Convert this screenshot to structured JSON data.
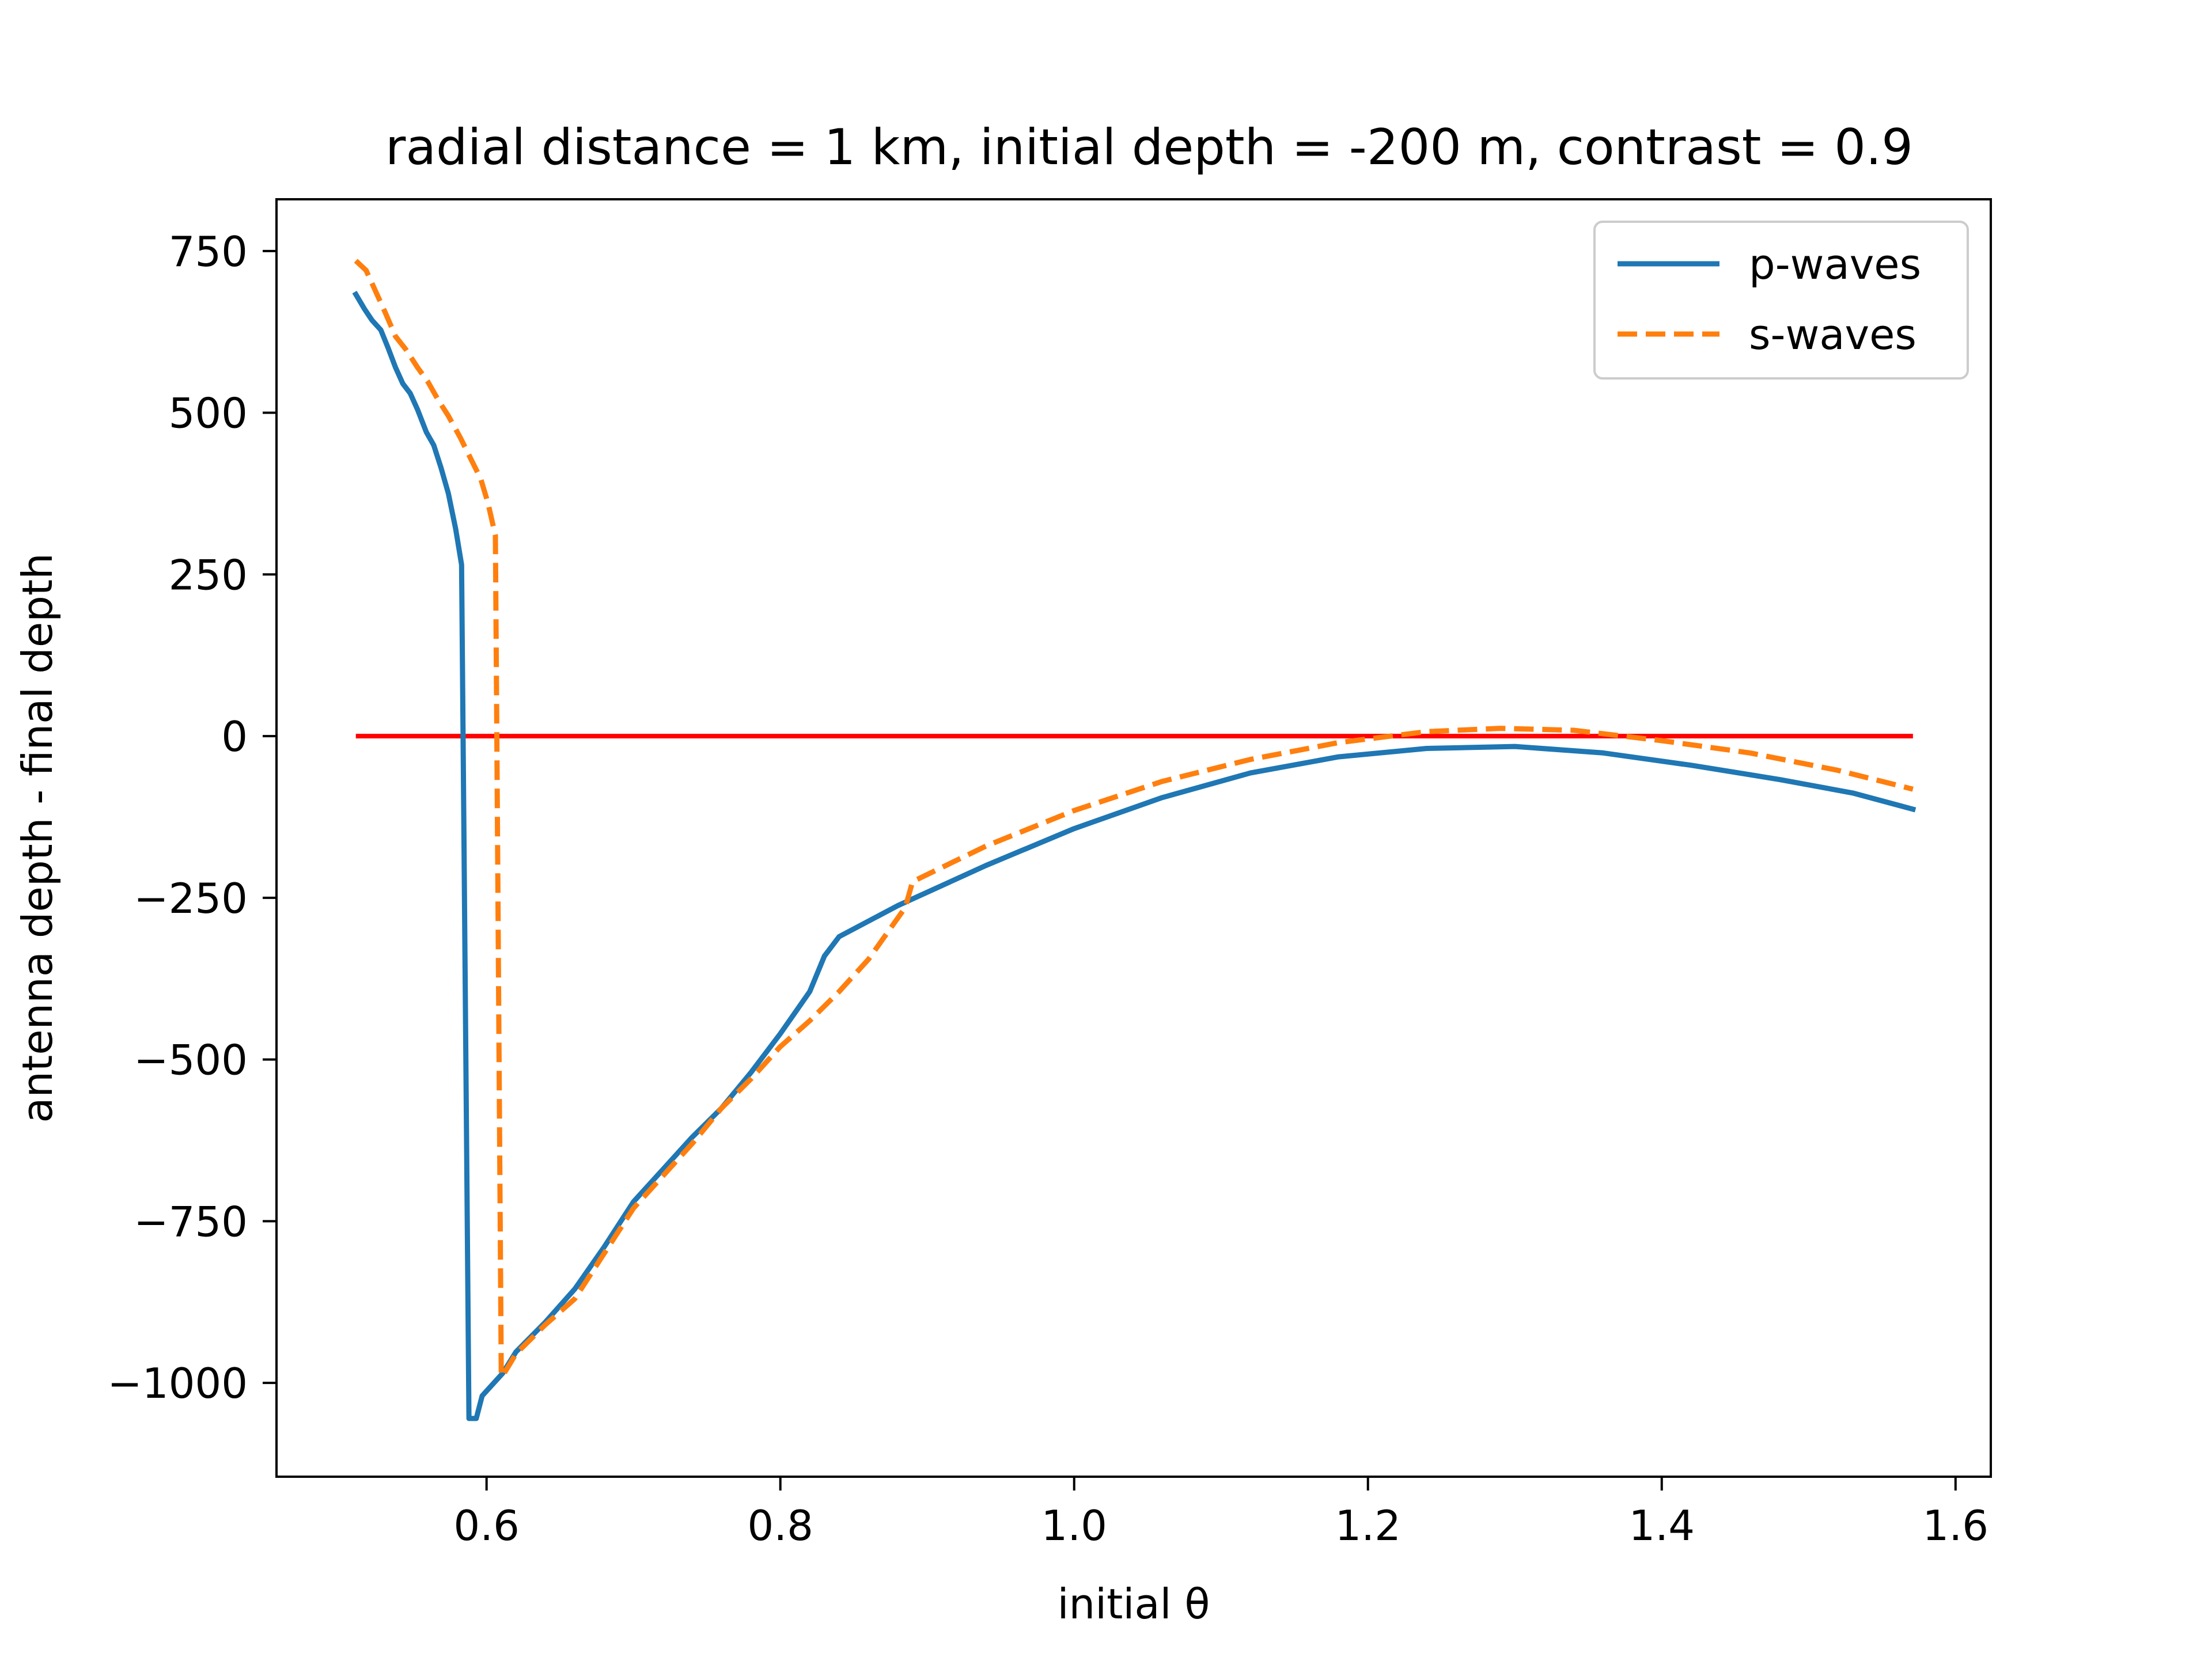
{
  "chart_data": {
    "type": "line",
    "title": "radial distance = 1 km, initial depth = -200 m, contrast = 0.9",
    "xlabel": "initial θ",
    "ylabel": "antenna depth - final depth",
    "xlim": [
      0.457,
      1.624
    ],
    "ylim": [
      -1145,
      830
    ],
    "xticks": [
      0.6,
      0.8,
      1.0,
      1.2,
      1.4,
      1.6
    ],
    "xtick_labels": [
      "0.6",
      "0.8",
      "1.0",
      "1.2",
      "1.4",
      "1.6"
    ],
    "yticks": [
      750,
      500,
      250,
      0,
      -250,
      -500,
      -750,
      -1000
    ],
    "ytick_labels": [
      "750",
      "500",
      "250",
      "0",
      "−250",
      "−500",
      "−750",
      "−1000"
    ],
    "grid": false,
    "legend": {
      "position": "upper-right"
    },
    "reference_line": {
      "y": 0,
      "x": [
        0.511,
        1.571
      ],
      "color": "#ff0000"
    },
    "series": [
      {
        "name": "p-waves",
        "color": "#1f77b4",
        "style": "solid",
        "points": [
          [
            0.511,
            683
          ],
          [
            0.517,
            660
          ],
          [
            0.522,
            643
          ],
          [
            0.528,
            628
          ],
          [
            0.533,
            600
          ],
          [
            0.538,
            570
          ],
          [
            0.543,
            545
          ],
          [
            0.548,
            530
          ],
          [
            0.553,
            505
          ],
          [
            0.559,
            470
          ],
          [
            0.564,
            450
          ],
          [
            0.569,
            415
          ],
          [
            0.574,
            375
          ],
          [
            0.579,
            320
          ],
          [
            0.583,
            265
          ],
          [
            0.584,
            0
          ],
          [
            0.588,
            -1055
          ],
          [
            0.593,
            -1055
          ],
          [
            0.597,
            -1020
          ],
          [
            0.611,
            -985
          ],
          [
            0.62,
            -952
          ],
          [
            0.64,
            -906
          ],
          [
            0.66,
            -855
          ],
          [
            0.68,
            -790
          ],
          [
            0.7,
            -720
          ],
          [
            0.72,
            -670
          ],
          [
            0.74,
            -620
          ],
          [
            0.76,
            -575
          ],
          [
            0.78,
            -520
          ],
          [
            0.8,
            -460
          ],
          [
            0.82,
            -395
          ],
          [
            0.83,
            -340
          ],
          [
            0.84,
            -310
          ],
          [
            0.88,
            -262
          ],
          [
            0.94,
            -200
          ],
          [
            1.0,
            -143
          ],
          [
            1.06,
            -95
          ],
          [
            1.12,
            -57
          ],
          [
            1.18,
            -32
          ],
          [
            1.24,
            -19
          ],
          [
            1.3,
            -16
          ],
          [
            1.36,
            -26
          ],
          [
            1.42,
            -45
          ],
          [
            1.48,
            -67
          ],
          [
            1.53,
            -88
          ],
          [
            1.571,
            -113
          ]
        ]
      },
      {
        "name": "s-waves",
        "color": "#ff7f0e",
        "style": "dashed",
        "points": [
          [
            0.511,
            735
          ],
          [
            0.518,
            720
          ],
          [
            0.524,
            690
          ],
          [
            0.531,
            655
          ],
          [
            0.538,
            618
          ],
          [
            0.545,
            598
          ],
          [
            0.553,
            570
          ],
          [
            0.56,
            548
          ],
          [
            0.567,
            520
          ],
          [
            0.574,
            495
          ],
          [
            0.582,
            462
          ],
          [
            0.589,
            430
          ],
          [
            0.596,
            398
          ],
          [
            0.601,
            360
          ],
          [
            0.606,
            310
          ],
          [
            0.607,
            0
          ],
          [
            0.61,
            -990
          ],
          [
            0.612,
            -985
          ],
          [
            0.62,
            -955
          ],
          [
            0.64,
            -910
          ],
          [
            0.66,
            -870
          ],
          [
            0.68,
            -800
          ],
          [
            0.7,
            -730
          ],
          [
            0.72,
            -680
          ],
          [
            0.74,
            -630
          ],
          [
            0.76,
            -575
          ],
          [
            0.78,
            -530
          ],
          [
            0.8,
            -480
          ],
          [
            0.82,
            -440
          ],
          [
            0.84,
            -395
          ],
          [
            0.86,
            -345
          ],
          [
            0.885,
            -265
          ],
          [
            0.89,
            -225
          ],
          [
            0.94,
            -170
          ],
          [
            1.0,
            -115
          ],
          [
            1.06,
            -70
          ],
          [
            1.12,
            -36
          ],
          [
            1.18,
            -10
          ],
          [
            1.24,
            7
          ],
          [
            1.29,
            12
          ],
          [
            1.34,
            9
          ],
          [
            1.4,
            -7
          ],
          [
            1.46,
            -26
          ],
          [
            1.52,
            -53
          ],
          [
            1.571,
            -82
          ]
        ]
      }
    ]
  }
}
